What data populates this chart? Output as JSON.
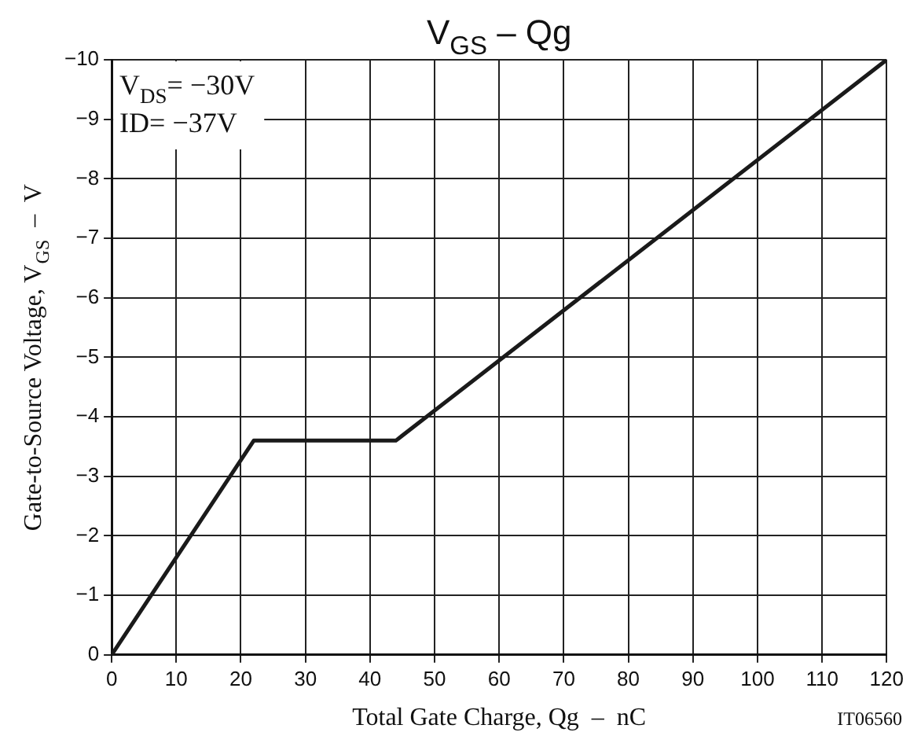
{
  "chart_data": {
    "type": "line",
    "title": "V$_{GS}$ – Qg",
    "xlabel": "Total Gate Charge, Qg  –  nC",
    "ylabel": "Gate-to-Source Voltage, V$_{GS}$  –  V",
    "x": [
      0,
      22,
      44,
      120
    ],
    "series": [
      {
        "color": "#1a1a1a",
        "values": [
          0,
          -3.6,
          -3.6,
          -10
        ]
      }
    ],
    "xlim": [
      0,
      120
    ],
    "xticks": [
      0,
      10,
      20,
      30,
      40,
      50,
      60,
      70,
      80,
      90,
      100,
      110,
      120
    ],
    "ylim": [
      0,
      -10
    ],
    "yticks": [
      {
        "value": 0,
        "label": "0"
      },
      {
        "value": -1,
        "label": "−1"
      },
      {
        "value": -2,
        "label": "−2"
      },
      {
        "value": -3,
        "label": "−3"
      },
      {
        "value": -4,
        "label": "−4"
      },
      {
        "value": -5,
        "label": "−5"
      },
      {
        "value": -6,
        "label": "−6"
      },
      {
        "value": -7,
        "label": "−7"
      },
      {
        "value": -8,
        "label": "−8"
      },
      {
        "value": -9,
        "label": "−9"
      },
      {
        "value": -10,
        "label": "−10"
      }
    ],
    "grid": true,
    "legend": false,
    "marker": "none",
    "line_style": "solid",
    "annotations": [
      "V$_{DS}$= −30V",
      "ID= −37V",
      "IT06560"
    ]
  }
}
